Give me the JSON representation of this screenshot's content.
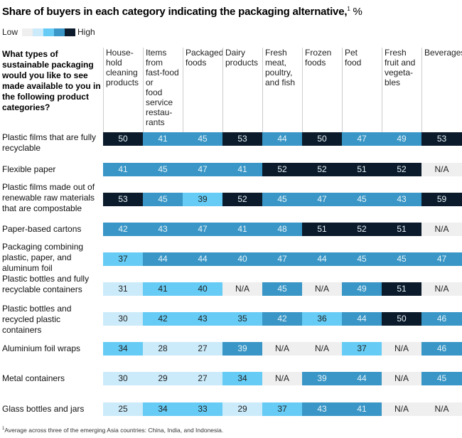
{
  "title": "Share of buyers in each category indicating the packaging alternative,",
  "title_footnote_mark": "1",
  "title_unit": "%",
  "legend": {
    "low": "Low",
    "high": "High",
    "colors": [
      "#efefef",
      "#ccebfa",
      "#66ccf5",
      "#3996c6",
      "#0b1b2b"
    ]
  },
  "chart_data": {
    "type": "table",
    "question": "What types of sustainable packaging would you like to see made available to you in the following product categories?",
    "columns": [
      "House-\nhold\ncleaning\nproducts",
      "Items\nfrom\nfast-food\nor\nfood\nservice\nrestau-\nrants",
      "Packaged\nfoods",
      "Dairy\nproducts",
      "Fresh\nmeat,\npoultry,\nand fish",
      "Frozen\nfoods",
      "Pet\nfood",
      "Fresh\nfruit and\nvegeta-\nbles",
      "Beverages"
    ],
    "rows": [
      {
        "label": "Plastic films that are fully recyclable",
        "values": [
          "50",
          "41",
          "45",
          "53",
          "44",
          "50",
          "47",
          "49",
          "53"
        ],
        "levels": [
          4,
          3,
          3,
          4,
          3,
          4,
          3,
          3,
          4
        ]
      },
      {
        "label": "Flexible paper",
        "values": [
          "41",
          "45",
          "47",
          "41",
          "52",
          "52",
          "51",
          "52",
          "N/A"
        ],
        "levels": [
          3,
          3,
          3,
          3,
          4,
          4,
          4,
          4,
          0
        ]
      },
      {
        "label": "Plastic films made out of renewable raw materials that are compostable",
        "values": [
          "53",
          "45",
          "39",
          "52",
          "45",
          "47",
          "45",
          "43",
          "59"
        ],
        "levels": [
          4,
          3,
          2,
          4,
          3,
          3,
          3,
          3,
          4
        ]
      },
      {
        "label": "Paper-based cartons",
        "values": [
          "42",
          "43",
          "47",
          "41",
          "48",
          "51",
          "52",
          "51",
          "N/A"
        ],
        "levels": [
          3,
          3,
          3,
          3,
          3,
          4,
          4,
          4,
          0
        ]
      },
      {
        "label": "Packaging combining plastic, paper, and aluminum foil",
        "values": [
          "37",
          "44",
          "44",
          "40",
          "47",
          "44",
          "45",
          "45",
          "47"
        ],
        "levels": [
          2,
          3,
          3,
          3,
          3,
          3,
          3,
          3,
          3
        ]
      },
      {
        "label": "Plastic bottles and fully recyclable containers",
        "values": [
          "31",
          "41",
          "40",
          "N/A",
          "45",
          "N/A",
          "49",
          "51",
          "N/A"
        ],
        "levels": [
          1,
          2,
          2,
          0,
          3,
          0,
          3,
          4,
          0
        ]
      },
      {
        "label": "Plastic bottles and recycled plastic containers",
        "values": [
          "30",
          "42",
          "43",
          "35",
          "42",
          "36",
          "44",
          "50",
          "46"
        ],
        "levels": [
          1,
          2,
          2,
          2,
          3,
          2,
          3,
          4,
          3
        ]
      },
      {
        "label": "Aluminium foil wraps",
        "values": [
          "34",
          "28",
          "27",
          "39",
          "N/A",
          "N/A",
          "37",
          "N/A",
          "46"
        ],
        "levels": [
          2,
          1,
          1,
          3,
          0,
          0,
          2,
          0,
          3
        ]
      },
      {
        "label": "Metal containers",
        "values": [
          "30",
          "29",
          "27",
          "34",
          "N/A",
          "39",
          "44",
          "N/A",
          "45"
        ],
        "levels": [
          1,
          1,
          1,
          2,
          0,
          3,
          3,
          0,
          3
        ]
      },
      {
        "label": "Glass bottles and jars",
        "values": [
          "25",
          "34",
          "33",
          "29",
          "37",
          "43",
          "41",
          "N/A",
          "N/A"
        ],
        "levels": [
          1,
          2,
          2,
          1,
          2,
          3,
          3,
          0,
          0
        ]
      }
    ]
  },
  "footnote_mark": "1",
  "footnote": "Average across three of the emerging Asia countries: China, India, and Indonesia."
}
